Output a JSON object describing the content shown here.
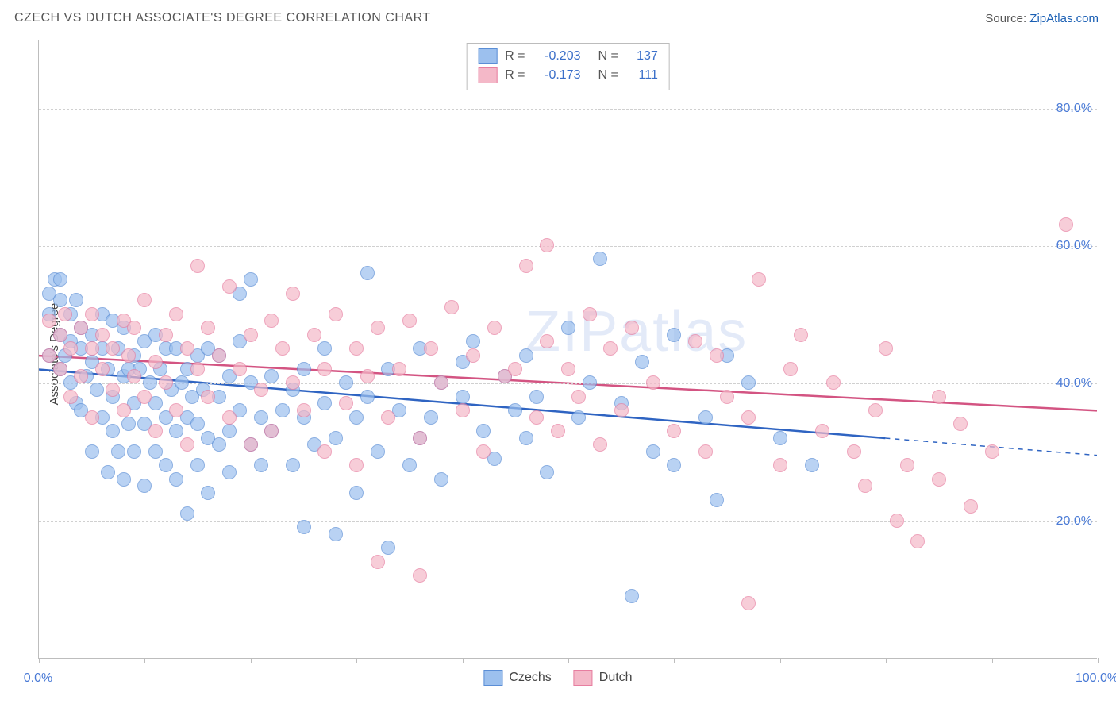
{
  "title": "CZECH VS DUTCH ASSOCIATE'S DEGREE CORRELATION CHART",
  "source_prefix": "Source: ",
  "source_link_text": "ZipAtlas.com",
  "y_axis_label": "Associate's Degree",
  "watermark_text": "ZIPatlas",
  "chart": {
    "type": "scatter",
    "background_color": "#ffffff",
    "grid_color": "#d0d0d0",
    "axis_color": "#bdbdbd",
    "tick_label_color": "#4b7bd6",
    "xlim": [
      0,
      100
    ],
    "ylim": [
      0,
      90
    ],
    "x_ticks": [
      0,
      10,
      20,
      30,
      40,
      50,
      60,
      70,
      80,
      90,
      100
    ],
    "x_tick_labels": {
      "0": "0.0%",
      "100": "100.0%"
    },
    "y_gridlines": [
      20,
      40,
      60,
      80
    ],
    "y_tick_labels": {
      "20": "20.0%",
      "40": "40.0%",
      "60": "60.0%",
      "80": "80.0%"
    },
    "point_radius": 9,
    "point_fill_opacity": 0.35,
    "point_stroke_opacity": 0.85,
    "point_stroke_width": 1.2
  },
  "series": [
    {
      "key": "czechs",
      "label": "Czechs",
      "fill": "#9cc0ee",
      "stroke": "#5b8ed6",
      "line_color": "#2f64c2",
      "line_width": 2.5,
      "regression": {
        "x1": 0,
        "y1": 42.0,
        "x2": 80,
        "y2": 32.0,
        "dashed_to_x": 100,
        "dashed_to_y": 29.5
      },
      "stats": {
        "R_label": "R =",
        "R": "-0.203",
        "N_label": "N =",
        "N": "137"
      },
      "points": [
        [
          1,
          53
        ],
        [
          1,
          50
        ],
        [
          1,
          44
        ],
        [
          1.5,
          55
        ],
        [
          2,
          52
        ],
        [
          2,
          47
        ],
        [
          2,
          42
        ],
        [
          2,
          55
        ],
        [
          2.5,
          44
        ],
        [
          3,
          40
        ],
        [
          3,
          50
        ],
        [
          3,
          46
        ],
        [
          3.5,
          52
        ],
        [
          3.5,
          37
        ],
        [
          4,
          45
        ],
        [
          4,
          36
        ],
        [
          4,
          48
        ],
        [
          4.5,
          41
        ],
        [
          5,
          47
        ],
        [
          5,
          43
        ],
        [
          5,
          30
        ],
        [
          5.5,
          39
        ],
        [
          6,
          45
        ],
        [
          6,
          35
        ],
        [
          6,
          50
        ],
        [
          6.5,
          42
        ],
        [
          6.5,
          27
        ],
        [
          7,
          38
        ],
        [
          7,
          49
        ],
        [
          7,
          33
        ],
        [
          7.5,
          45
        ],
        [
          7.5,
          30
        ],
        [
          8,
          41
        ],
        [
          8,
          26
        ],
        [
          8,
          48
        ],
        [
          8.5,
          42
        ],
        [
          8.5,
          34
        ],
        [
          9,
          37
        ],
        [
          9,
          44
        ],
        [
          9,
          30
        ],
        [
          9.5,
          42
        ],
        [
          10,
          34
        ],
        [
          10,
          46
        ],
        [
          10,
          25
        ],
        [
          10.5,
          40
        ],
        [
          11,
          37
        ],
        [
          11,
          30
        ],
        [
          11,
          47
        ],
        [
          11.5,
          42
        ],
        [
          12,
          35
        ],
        [
          12,
          28
        ],
        [
          12,
          45
        ],
        [
          12.5,
          39
        ],
        [
          13,
          33
        ],
        [
          13,
          26
        ],
        [
          13,
          45
        ],
        [
          13.5,
          40
        ],
        [
          14,
          35
        ],
        [
          14,
          42
        ],
        [
          14,
          21
        ],
        [
          14.5,
          38
        ],
        [
          15,
          34
        ],
        [
          15,
          44
        ],
        [
          15,
          28
        ],
        [
          15.5,
          39
        ],
        [
          16,
          32
        ],
        [
          16,
          45
        ],
        [
          16,
          24
        ],
        [
          17,
          38
        ],
        [
          17,
          31
        ],
        [
          17,
          44
        ],
        [
          18,
          33
        ],
        [
          18,
          27
        ],
        [
          18,
          41
        ],
        [
          19,
          36
        ],
        [
          19,
          46
        ],
        [
          19,
          53
        ],
        [
          20,
          31
        ],
        [
          20,
          55
        ],
        [
          20,
          40
        ],
        [
          21,
          35
        ],
        [
          21,
          28
        ],
        [
          22,
          41
        ],
        [
          22,
          33
        ],
        [
          23,
          36
        ],
        [
          24,
          39
        ],
        [
          24,
          28
        ],
        [
          25,
          42
        ],
        [
          25,
          35
        ],
        [
          25,
          19
        ],
        [
          26,
          31
        ],
        [
          27,
          45
        ],
        [
          27,
          37
        ],
        [
          28,
          32
        ],
        [
          28,
          18
        ],
        [
          29,
          40
        ],
        [
          30,
          35
        ],
        [
          30,
          24
        ],
        [
          31,
          38
        ],
        [
          31,
          56
        ],
        [
          32,
          30
        ],
        [
          33,
          42
        ],
        [
          33,
          16
        ],
        [
          34,
          36
        ],
        [
          35,
          28
        ],
        [
          36,
          45
        ],
        [
          36,
          32
        ],
        [
          37,
          35
        ],
        [
          38,
          40
        ],
        [
          38,
          26
        ],
        [
          40,
          38
        ],
        [
          40,
          43
        ],
        [
          41,
          46
        ],
        [
          42,
          33
        ],
        [
          43,
          29
        ],
        [
          44,
          41
        ],
        [
          45,
          36
        ],
        [
          46,
          32
        ],
        [
          46,
          44
        ],
        [
          47,
          38
        ],
        [
          48,
          27
        ],
        [
          50,
          48
        ],
        [
          51,
          35
        ],
        [
          52,
          40
        ],
        [
          53,
          58
        ],
        [
          55,
          37
        ],
        [
          56,
          9
        ],
        [
          57,
          43
        ],
        [
          58,
          30
        ],
        [
          60,
          47
        ],
        [
          60,
          28
        ],
        [
          63,
          35
        ],
        [
          64,
          23
        ],
        [
          65,
          44
        ],
        [
          67,
          40
        ],
        [
          70,
          32
        ],
        [
          73,
          28
        ]
      ]
    },
    {
      "key": "dutch",
      "label": "Dutch",
      "fill": "#f4b8c8",
      "stroke": "#e77ea0",
      "line_color": "#d35482",
      "line_width": 2.5,
      "regression": {
        "x1": 0,
        "y1": 44.0,
        "x2": 100,
        "y2": 36.0
      },
      "stats": {
        "R_label": "R =",
        "R": "-0.173",
        "N_label": "N =",
        "N": "111"
      },
      "points": [
        [
          1,
          44
        ],
        [
          1,
          49
        ],
        [
          2,
          47
        ],
        [
          2,
          42
        ],
        [
          2.5,
          50
        ],
        [
          3,
          45
        ],
        [
          3,
          38
        ],
        [
          4,
          48
        ],
        [
          4,
          41
        ],
        [
          5,
          45
        ],
        [
          5,
          50
        ],
        [
          5,
          35
        ],
        [
          6,
          42
        ],
        [
          6,
          47
        ],
        [
          7,
          39
        ],
        [
          7,
          45
        ],
        [
          8,
          49
        ],
        [
          8,
          36
        ],
        [
          8.5,
          44
        ],
        [
          9,
          41
        ],
        [
          9,
          48
        ],
        [
          10,
          38
        ],
        [
          10,
          52
        ],
        [
          11,
          43
        ],
        [
          11,
          33
        ],
        [
          12,
          47
        ],
        [
          12,
          40
        ],
        [
          13,
          36
        ],
        [
          13,
          50
        ],
        [
          14,
          45
        ],
        [
          14,
          31
        ],
        [
          15,
          42
        ],
        [
          15,
          57
        ],
        [
          16,
          38
        ],
        [
          16,
          48
        ],
        [
          17,
          44
        ],
        [
          18,
          35
        ],
        [
          18,
          54
        ],
        [
          19,
          42
        ],
        [
          20,
          47
        ],
        [
          20,
          31
        ],
        [
          21,
          39
        ],
        [
          22,
          49
        ],
        [
          22,
          33
        ],
        [
          23,
          45
        ],
        [
          24,
          40
        ],
        [
          24,
          53
        ],
        [
          25,
          36
        ],
        [
          26,
          47
        ],
        [
          27,
          42
        ],
        [
          27,
          30
        ],
        [
          28,
          50
        ],
        [
          29,
          37
        ],
        [
          30,
          45
        ],
        [
          30,
          28
        ],
        [
          31,
          41
        ],
        [
          32,
          48
        ],
        [
          32,
          14
        ],
        [
          33,
          35
        ],
        [
          34,
          42
        ],
        [
          35,
          49
        ],
        [
          36,
          32
        ],
        [
          36,
          12
        ],
        [
          37,
          45
        ],
        [
          38,
          40
        ],
        [
          39,
          51
        ],
        [
          40,
          36
        ],
        [
          41,
          44
        ],
        [
          42,
          30
        ],
        [
          43,
          48
        ],
        [
          44,
          41
        ],
        [
          45,
          42
        ],
        [
          46,
          57
        ],
        [
          47,
          35
        ],
        [
          48,
          60
        ],
        [
          48,
          46
        ],
        [
          49,
          33
        ],
        [
          50,
          42
        ],
        [
          51,
          38
        ],
        [
          52,
          50
        ],
        [
          53,
          31
        ],
        [
          54,
          45
        ],
        [
          55,
          36
        ],
        [
          56,
          48
        ],
        [
          58,
          40
        ],
        [
          60,
          33
        ],
        [
          62,
          46
        ],
        [
          63,
          30
        ],
        [
          64,
          44
        ],
        [
          65,
          38
        ],
        [
          67,
          35
        ],
        [
          67,
          8
        ],
        [
          68,
          55
        ],
        [
          70,
          28
        ],
        [
          71,
          42
        ],
        [
          72,
          47
        ],
        [
          74,
          33
        ],
        [
          75,
          40
        ],
        [
          77,
          30
        ],
        [
          78,
          25
        ],
        [
          79,
          36
        ],
        [
          80,
          45
        ],
        [
          81,
          20
        ],
        [
          82,
          28
        ],
        [
          83,
          17
        ],
        [
          85,
          38
        ],
        [
          87,
          34
        ],
        [
          90,
          30
        ],
        [
          97,
          63
        ],
        [
          88,
          22
        ],
        [
          85,
          26
        ]
      ]
    }
  ],
  "bottom_legend": [
    {
      "series_key": "czechs"
    },
    {
      "series_key": "dutch"
    }
  ]
}
